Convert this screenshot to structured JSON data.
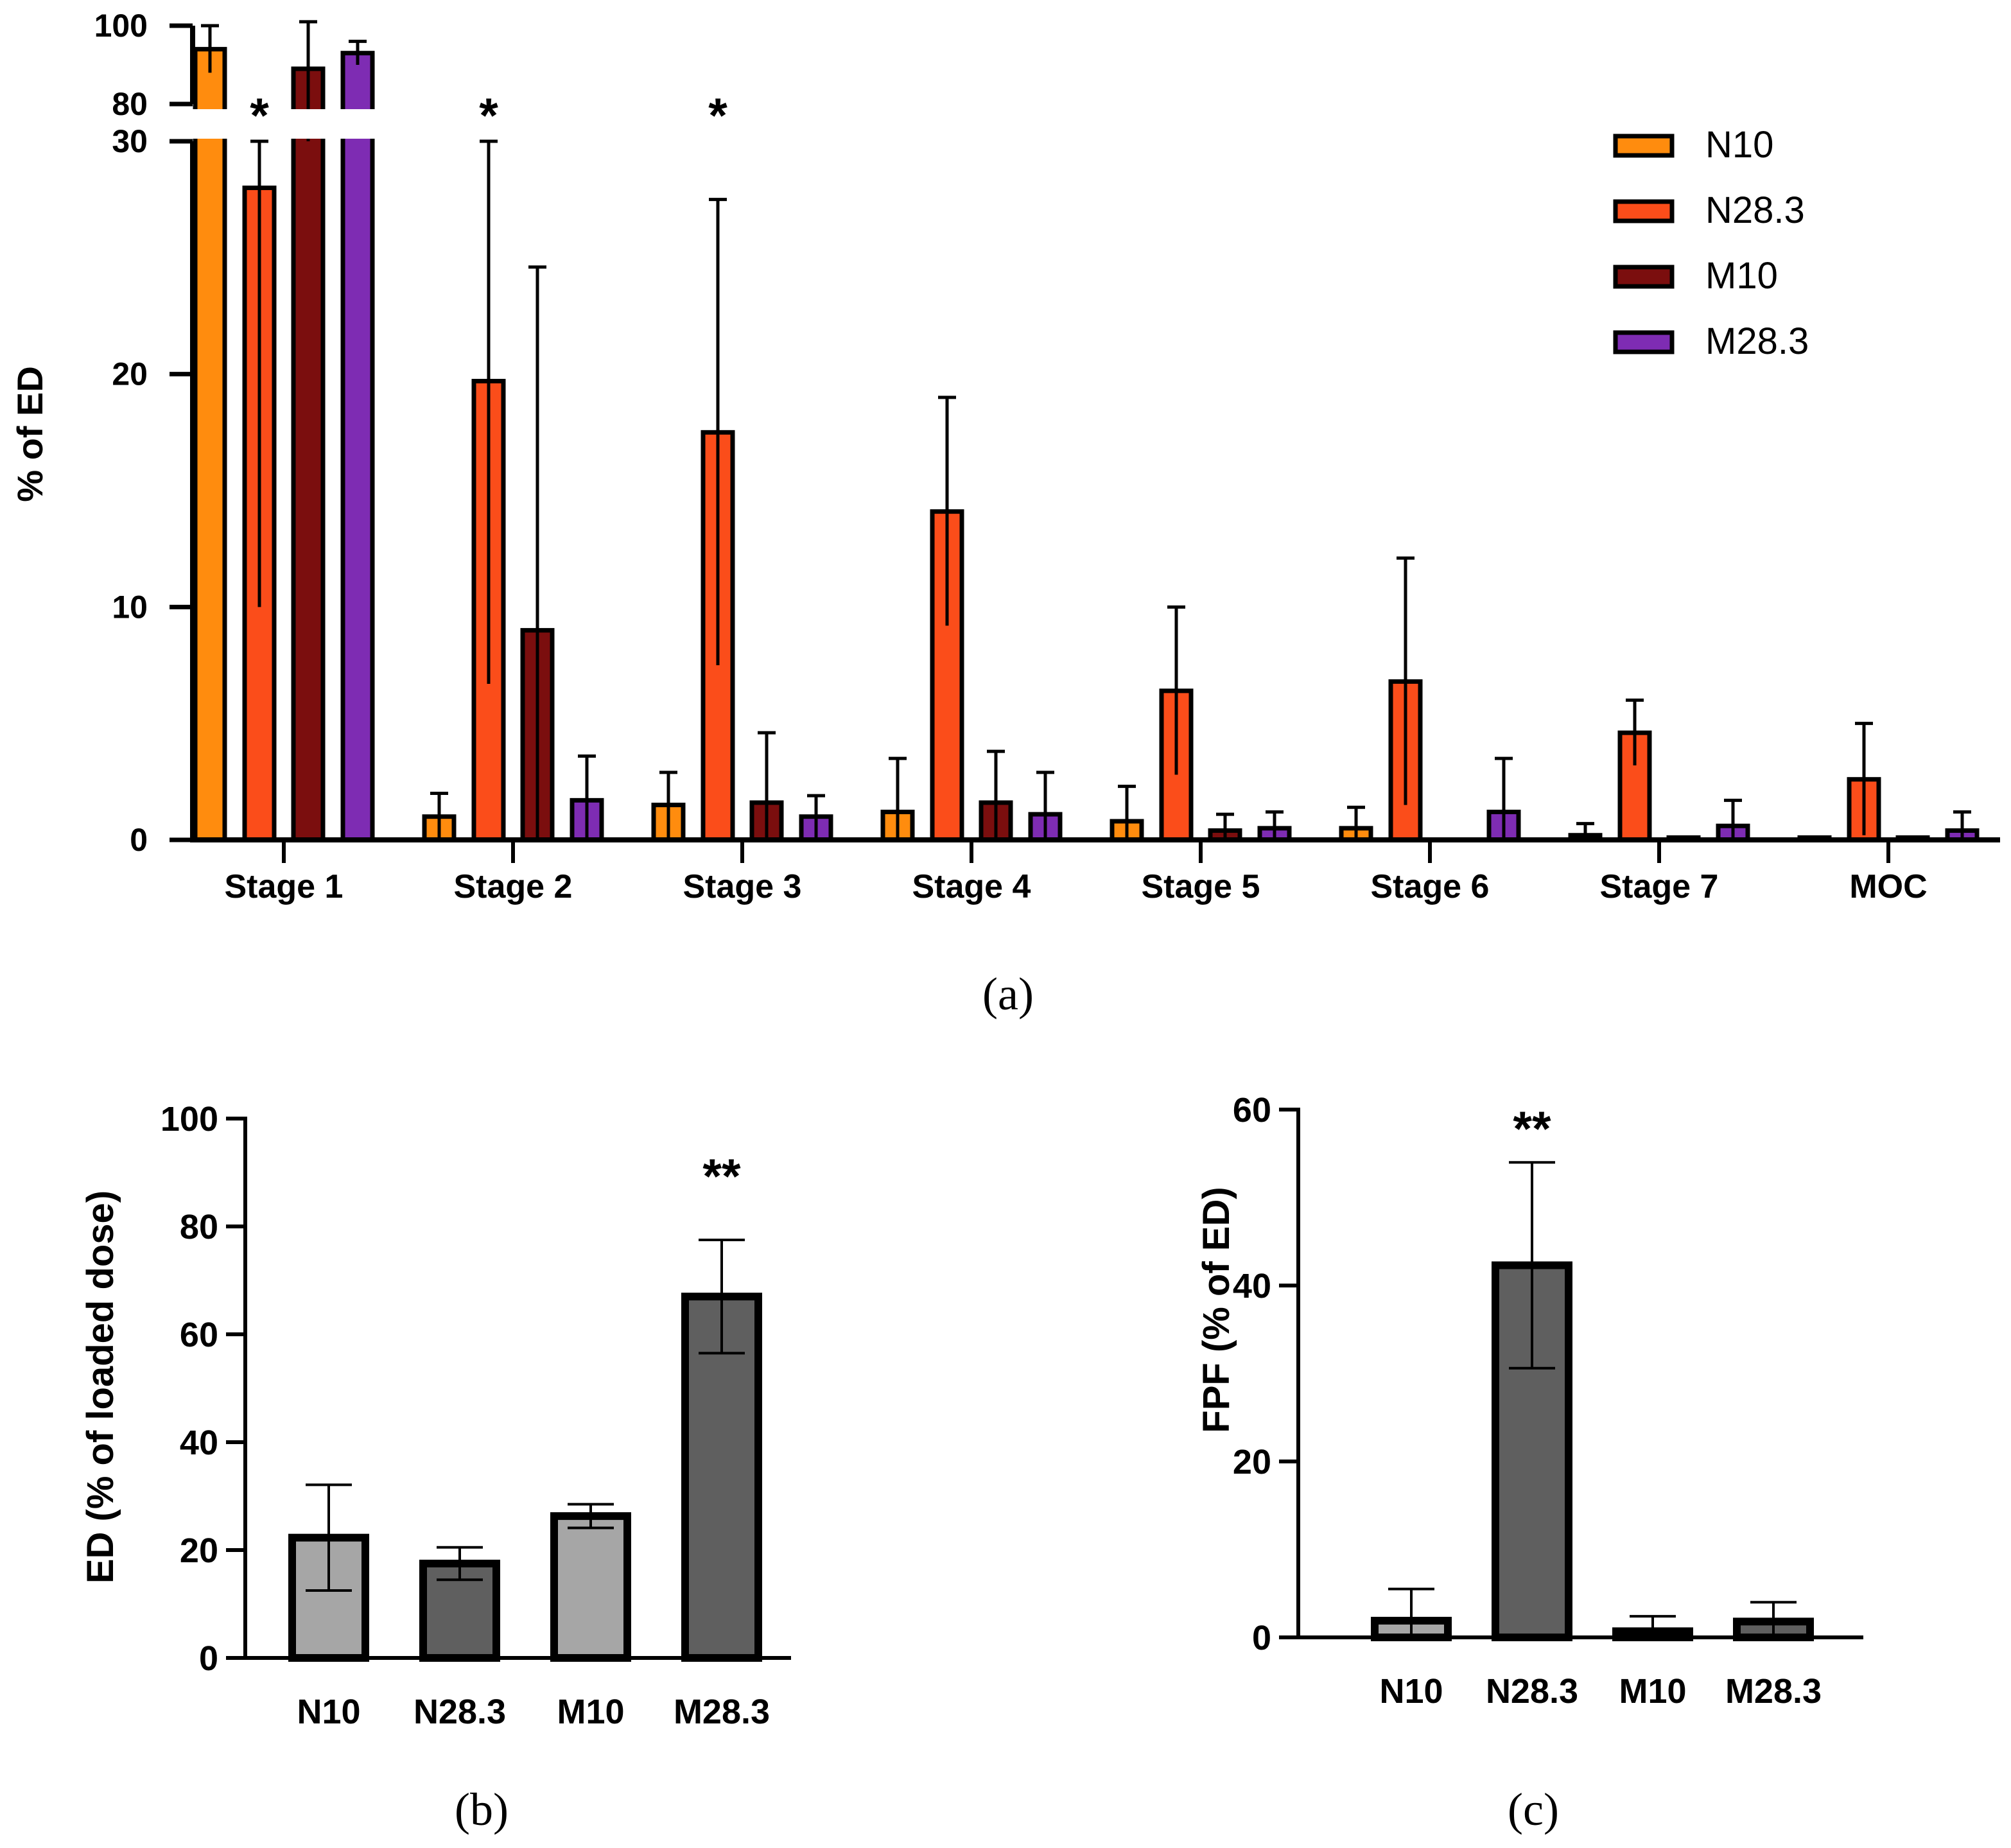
{
  "colors": {
    "N10": "#ff8c0e",
    "N28.3": "#fb4d1a",
    "M10": "#7b0e0e",
    "M28.3": "#7e2cb3",
    "bar_light": "#a6a6a6",
    "bar_dark": "#5f5f5f",
    "axis": "#000000"
  },
  "captions": {
    "a": "(a)",
    "b": "(b)",
    "c": "(c)"
  },
  "chart_data": [
    {
      "id": "a",
      "type": "bar",
      "title": "",
      "xlabel": "",
      "ylabel": "% of ED",
      "categories": [
        "Stage 1",
        "Stage 2",
        "Stage 3",
        "Stage 4",
        "Stage 5",
        "Stage 6",
        "Stage 7",
        "MOC"
      ],
      "series": [
        {
          "name": "N10",
          "values": [
            94.0,
            1.0,
            1.5,
            1.2,
            0.8,
            0.5,
            0.2,
            0.1
          ],
          "errors": [
            6.0,
            1.0,
            1.4,
            2.3,
            1.5,
            0.9,
            0.5,
            0.0
          ]
        },
        {
          "name": "N28.3",
          "values": [
            28.0,
            19.7,
            17.5,
            14.1,
            6.4,
            6.8,
            4.6,
            2.6
          ],
          "errors": [
            18.0,
            13.0,
            10.0,
            4.9,
            3.6,
            5.3,
            1.4,
            2.4
          ]
        },
        {
          "name": "M10",
          "values": [
            89.0,
            9.0,
            1.6,
            1.6,
            0.4,
            0.0,
            0.1,
            0.1
          ],
          "errors": [
            12.0,
            15.6,
            3.0,
            2.2,
            0.7,
            0.0,
            0.0,
            0.0
          ]
        },
        {
          "name": "M28.3",
          "values": [
            93.0,
            1.7,
            1.0,
            1.1,
            0.5,
            1.2,
            0.6,
            0.4
          ],
          "errors": [
            3.0,
            1.9,
            0.9,
            1.8,
            0.7,
            2.3,
            1.1,
            0.8
          ]
        }
      ],
      "axis_break": {
        "lower_range": [
          0,
          30
        ],
        "upper_range": [
          80,
          100
        ]
      },
      "yticks_lower": [
        "0",
        "10",
        "20",
        "30"
      ],
      "yticks_upper": [
        "80",
        "100"
      ],
      "significance": [
        {
          "category": "Stage 1",
          "series": "N28.3",
          "label": "*"
        },
        {
          "category": "Stage 2",
          "series": "N28.3",
          "label": "*"
        },
        {
          "category": "Stage 3",
          "series": "N28.3",
          "label": "*"
        }
      ],
      "legend": [
        "N10",
        "N28.3",
        "M10",
        "M28.3"
      ],
      "legend_position": "top-right",
      "grid": false
    },
    {
      "id": "b",
      "type": "bar",
      "title": "",
      "xlabel": "",
      "ylabel": "ED (% of loaded dose)",
      "categories": [
        "N10",
        "N28.3",
        "M10",
        "M28.3"
      ],
      "values": [
        22.3,
        17.5,
        26.3,
        67.0
      ],
      "errors": [
        9.8,
        3.0,
        2.2,
        10.5
      ],
      "ylim": [
        0,
        100
      ],
      "yticks": [
        "0",
        "20",
        "40",
        "60",
        "80",
        "100"
      ],
      "significance": [
        {
          "category": "M28.3",
          "label": "**"
        }
      ],
      "grid": false
    },
    {
      "id": "c",
      "type": "bar",
      "title": "",
      "xlabel": "",
      "ylabel": "FPF (% of  ED)",
      "categories": [
        "N10",
        "N28.3",
        "M10",
        "M28.3"
      ],
      "values": [
        1.9,
        42.3,
        0.7,
        1.8
      ],
      "errors": [
        3.6,
        11.7,
        1.7,
        2.2
      ],
      "ylim": [
        0,
        60
      ],
      "yticks": [
        "0",
        "20",
        "40",
        "60"
      ],
      "significance": [
        {
          "category": "N28.3",
          "label": "**"
        }
      ],
      "grid": false
    }
  ]
}
